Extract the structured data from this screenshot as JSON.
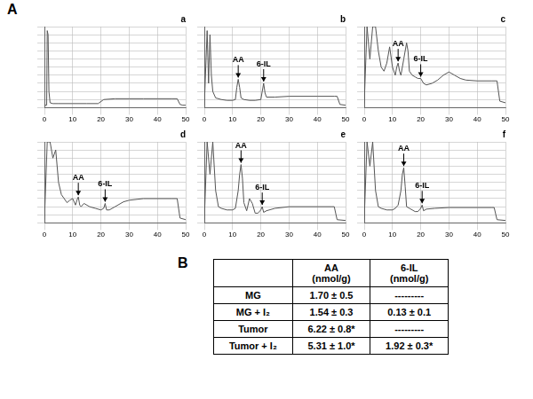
{
  "panel_labels": [
    "A",
    "B"
  ],
  "chart_data": [
    {
      "type": "line",
      "title": "a",
      "xlim": [
        0,
        50
      ],
      "xticks": [
        0,
        10,
        20,
        30,
        40,
        50
      ],
      "ylim": [
        0,
        100
      ],
      "yticks": [
        0,
        10,
        20,
        30,
        40,
        50,
        60,
        70,
        80,
        90,
        100
      ],
      "grid": true,
      "tick_labels": "x",
      "x": [
        0,
        0.8,
        1,
        1.3,
        1.6,
        2,
        3,
        5,
        10,
        15,
        19,
        21,
        25,
        30,
        35,
        40,
        45,
        47,
        48,
        49,
        50
      ],
      "series": [
        {
          "color": "#555555",
          "values": [
            3,
            3,
            95,
            90,
            20,
            6,
            5,
            5,
            5,
            5,
            5,
            10,
            11,
            11,
            11,
            11,
            11,
            11,
            4,
            3,
            3
          ]
        }
      ],
      "annotations": []
    },
    {
      "type": "line",
      "title": "b",
      "xlim": [
        0,
        50
      ],
      "xticks": [
        0,
        10,
        20,
        30,
        40,
        50
      ],
      "ylim": [
        0,
        100
      ],
      "yticks": [
        0,
        10,
        20,
        30,
        40,
        50,
        60,
        70,
        80,
        90,
        100
      ],
      "grid": true,
      "tick_labels": "x",
      "x": [
        0,
        1,
        1.5,
        2,
        2.5,
        3,
        4,
        6,
        8,
        10,
        11,
        11.5,
        12,
        12.5,
        13,
        14,
        16,
        18,
        20,
        20.5,
        21,
        21.5,
        22,
        25,
        30,
        40,
        46,
        47,
        48,
        50
      ],
      "series": [
        {
          "color": "#555555",
          "values": [
            3,
            95,
            30,
            90,
            40,
            20,
            12,
            10,
            9,
            9,
            10,
            25,
            35,
            25,
            12,
            10,
            9,
            9,
            10,
            20,
            30,
            18,
            13,
            13,
            14,
            14,
            14,
            14,
            4,
            3
          ]
        }
      ],
      "annotations": [
        {
          "label": "AA",
          "x": 12,
          "y": 35
        },
        {
          "label": "6-IL",
          "x": 21,
          "y": 30
        }
      ]
    },
    {
      "type": "line",
      "title": "c",
      "xlim": [
        0,
        50
      ],
      "xticks": [
        0,
        10,
        20,
        30,
        40,
        50
      ],
      "ylim": [
        0,
        100
      ],
      "yticks": [
        0,
        10,
        20,
        30,
        40,
        50,
        60,
        70,
        80,
        90,
        100
      ],
      "grid": true,
      "tick_labels": "x",
      "x": [
        0,
        1,
        2,
        3,
        4,
        5,
        6,
        7,
        8,
        9,
        10,
        11,
        11.5,
        12,
        12.5,
        13,
        14,
        15,
        15.5,
        16,
        17,
        18,
        19,
        20,
        21,
        22,
        24,
        26,
        28,
        30,
        32,
        34,
        36,
        40,
        45,
        47,
        48,
        50
      ],
      "series": [
        {
          "color": "#555555",
          "values": [
            5,
            100,
            60,
            100,
            100,
            70,
            50,
            45,
            55,
            75,
            50,
            40,
            50,
            55,
            45,
            40,
            60,
            80,
            70,
            45,
            40,
            38,
            36,
            36,
            30,
            28,
            30,
            34,
            40,
            44,
            40,
            36,
            34,
            33,
            33,
            33,
            8,
            6
          ]
        }
      ],
      "annotations": [
        {
          "label": "AA",
          "x": 12,
          "y": 55
        },
        {
          "label": "6-IL",
          "x": 20,
          "y": 36
        }
      ]
    },
    {
      "type": "line",
      "title": "d",
      "xlim": [
        0,
        50
      ],
      "xticks": [
        0,
        10,
        20,
        30,
        40,
        50
      ],
      "ylim": [
        0,
        100
      ],
      "yticks": [
        0,
        10,
        20,
        30,
        40,
        50,
        60,
        70,
        80,
        90,
        100
      ],
      "grid": true,
      "tick_labels": "x",
      "x": [
        0,
        1,
        2,
        3,
        4,
        5,
        6,
        7,
        8,
        9,
        10,
        11,
        11.5,
        12,
        12.5,
        13,
        14,
        16,
        18,
        20,
        21,
        21.5,
        22,
        23,
        25,
        28,
        30,
        35,
        40,
        45,
        47,
        48,
        50
      ],
      "series": [
        {
          "color": "#555555",
          "values": [
            4,
            100,
            100,
            80,
            90,
            50,
            35,
            30,
            25,
            28,
            30,
            22,
            28,
            32,
            22,
            20,
            24,
            20,
            18,
            16,
            18,
            24,
            16,
            16,
            20,
            26,
            28,
            30,
            30,
            30,
            30,
            6,
            4
          ]
        }
      ],
      "annotations": [
        {
          "label": "AA",
          "x": 12,
          "y": 32
        },
        {
          "label": "6-IL",
          "x": 21.5,
          "y": 24
        }
      ]
    },
    {
      "type": "line",
      "title": "e",
      "xlim": [
        0,
        50
      ],
      "xticks": [
        0,
        10,
        20,
        30,
        40,
        50
      ],
      "ylim": [
        0,
        100
      ],
      "yticks": [
        0,
        10,
        20,
        30,
        40,
        50,
        60,
        70,
        80,
        90,
        100
      ],
      "grid": true,
      "tick_labels": "x",
      "x": [
        0,
        1,
        2,
        3,
        4,
        5,
        6,
        8,
        10,
        11,
        12,
        12.5,
        13,
        13.5,
        14,
        15,
        16,
        17,
        18,
        19,
        20,
        20.5,
        21,
        22,
        25,
        30,
        40,
        45,
        46,
        47,
        50
      ],
      "series": [
        {
          "color": "#555555",
          "values": [
            4,
            100,
            60,
            100,
            40,
            20,
            18,
            16,
            16,
            18,
            40,
            60,
            72,
            55,
            25,
            15,
            30,
            24,
            12,
            12,
            16,
            20,
            13,
            15,
            18,
            20,
            20,
            20,
            20,
            4,
            3
          ]
        }
      ],
      "annotations": [
        {
          "label": "AA",
          "x": 13,
          "y": 72
        },
        {
          "label": "6-IL",
          "x": 20.5,
          "y": 20
        }
      ]
    },
    {
      "type": "line",
      "title": "f",
      "xlim": [
        0,
        50
      ],
      "xticks": [
        0,
        10,
        20,
        30,
        40,
        50
      ],
      "ylim": [
        0,
        100
      ],
      "yticks": [
        0,
        10,
        20,
        30,
        40,
        50,
        60,
        70,
        80,
        90,
        100
      ],
      "grid": true,
      "tick_labels": "x",
      "x": [
        0,
        1,
        2,
        3,
        4,
        5,
        6,
        8,
        10,
        11,
        12,
        13,
        13.5,
        14,
        14.5,
        15,
        16,
        17,
        18,
        19,
        20,
        20.5,
        21,
        22,
        25,
        30,
        40,
        45,
        46,
        47,
        50
      ],
      "series": [
        {
          "color": "#555555",
          "values": [
            4,
            100,
            70,
            100,
            40,
            20,
            18,
            16,
            16,
            18,
            22,
            40,
            60,
            68,
            45,
            20,
            18,
            16,
            14,
            14,
            18,
            22,
            15,
            17,
            18,
            19,
            19,
            19,
            19,
            4,
            3
          ]
        }
      ],
      "annotations": [
        {
          "label": "AA",
          "x": 14,
          "y": 68
        },
        {
          "label": "6-IL",
          "x": 20.5,
          "y": 22
        }
      ]
    }
  ],
  "table": {
    "header": [
      "",
      "AA\n(nmol/g)",
      "6-IL\n(nmol/g)"
    ],
    "rows": [
      [
        "MG",
        "1.70 ± 0.5",
        "---------"
      ],
      [
        "MG + I₂",
        "1.54 ± 0.3",
        "0.13 ± 0.1"
      ],
      [
        "Tumor",
        "6.22 ± 0.8*",
        "---------"
      ],
      [
        "Tumor + I₂",
        "5.31 ± 1.0*",
        "1.92 ± 0.3*"
      ]
    ]
  }
}
